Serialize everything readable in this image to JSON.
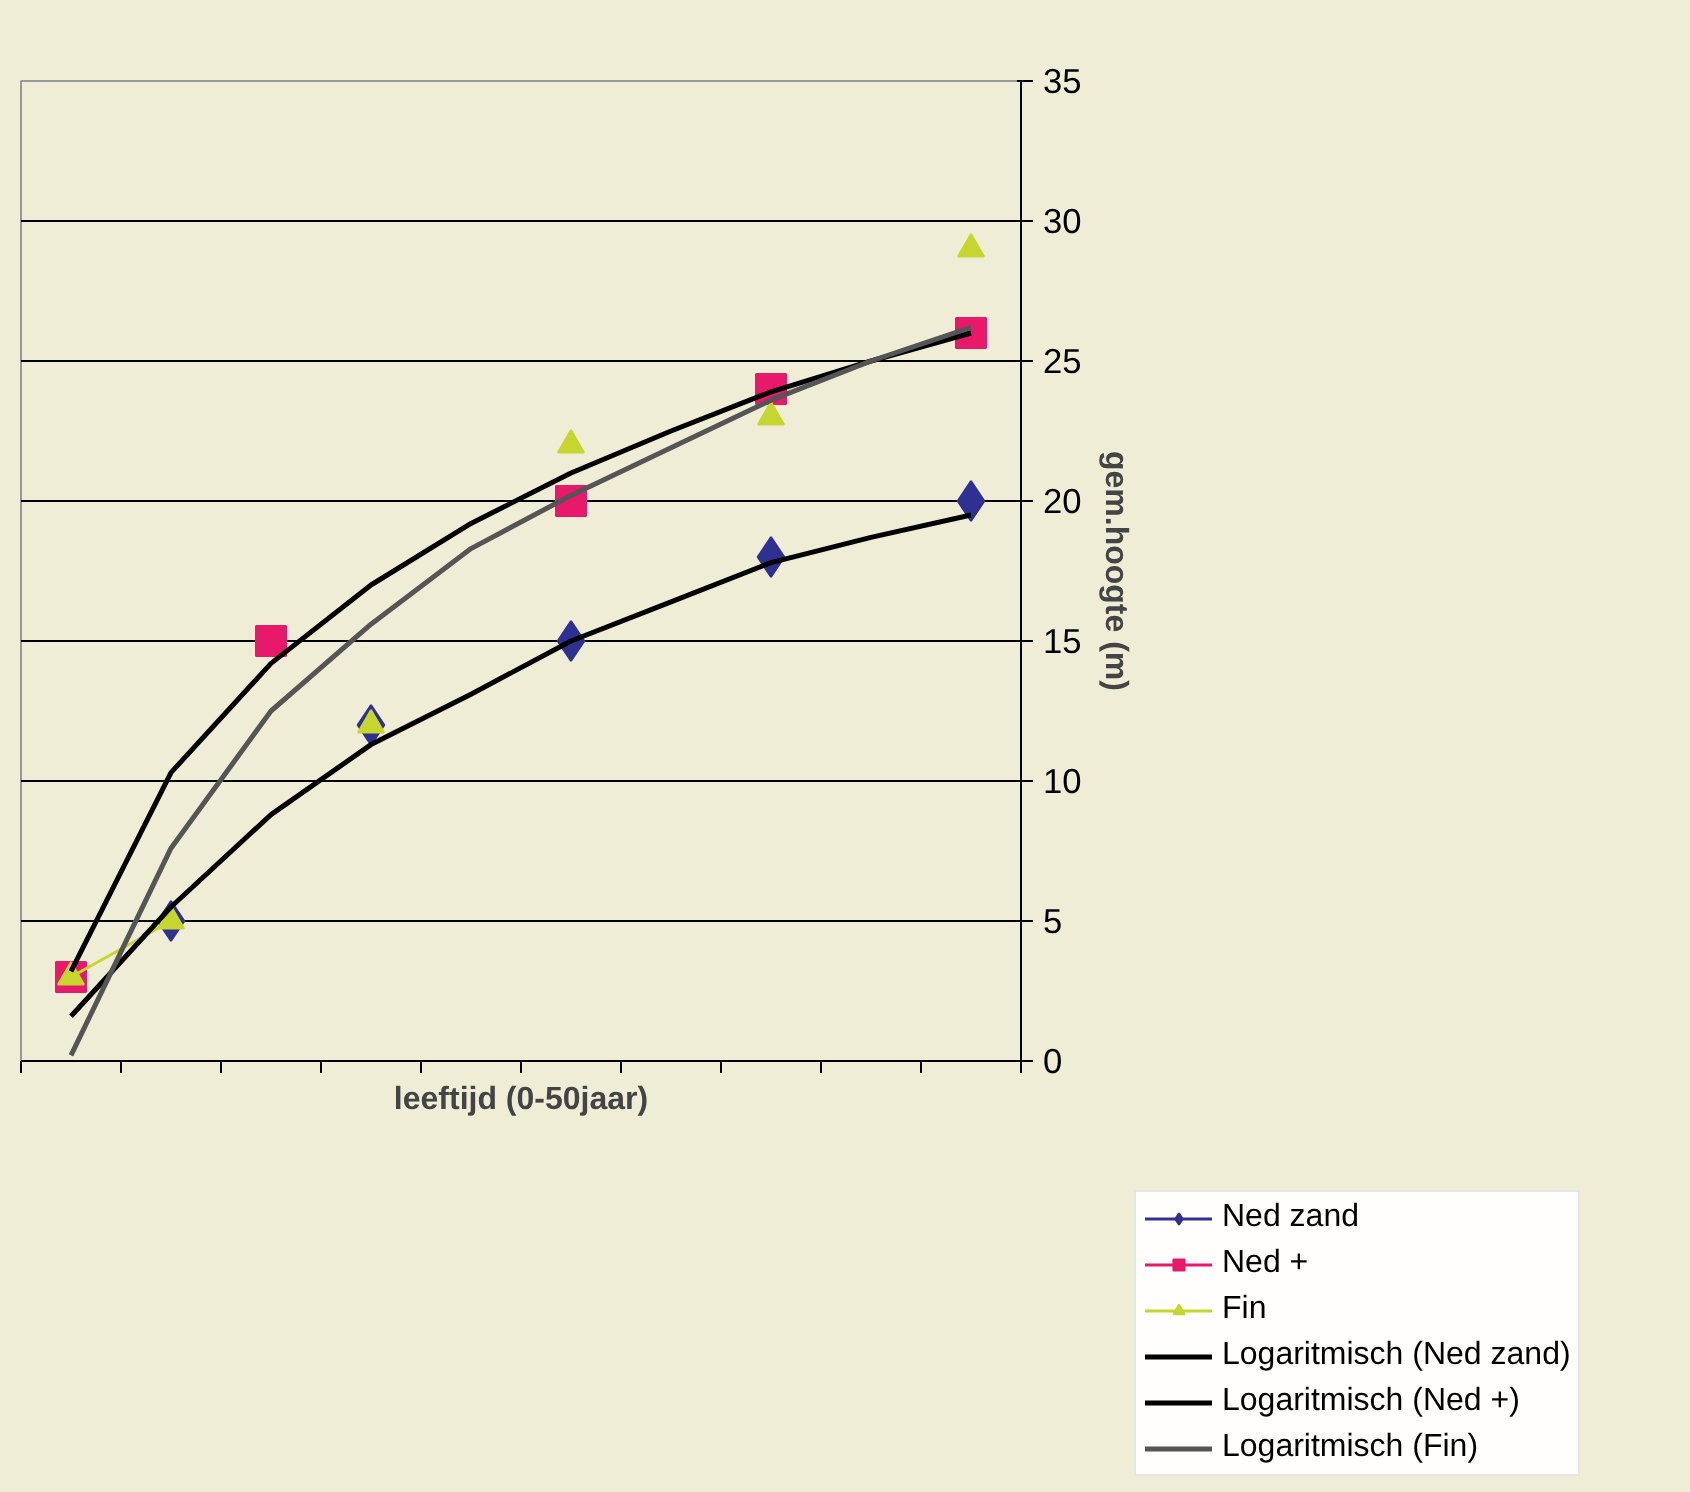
{
  "chart_data": {
    "type": "line",
    "xlabel": "leeftijd (0-50jaar)",
    "ylabel": "gem.hoogte (m)",
    "categories": [
      null,
      null,
      null,
      null,
      null,
      null,
      null,
      null,
      null,
      null
    ],
    "ylim": [
      0,
      35
    ],
    "yticks": [
      0,
      5,
      10,
      15,
      20,
      25,
      30,
      35
    ],
    "grid": "y",
    "legend": "bottom right",
    "tick_labels": "y",
    "line_style": "solid",
    "series": [
      {
        "name": "Ned zand",
        "type": "scatter",
        "color": "#2e3192",
        "marker": "diamond",
        "values": [
          null,
          5,
          null,
          12,
          null,
          15,
          null,
          18,
          null,
          20
        ]
      },
      {
        "name": "Ned +",
        "type": "scatter",
        "color": "#e8196a",
        "marker": "square",
        "values": [
          3,
          null,
          15,
          null,
          null,
          20,
          null,
          24,
          null,
          26
        ]
      },
      {
        "name": "Fin",
        "color": "#c6d62e",
        "marker": "triangle",
        "values": [
          3,
          5,
          null,
          12,
          null,
          22,
          null,
          23,
          null,
          29
        ]
      },
      {
        "name": "Logaritmisch (Ned zand)",
        "color": "#000000",
        "marker": "none",
        "values": [
          1.6,
          5.5,
          8.8,
          11.3,
          13.1,
          15.0,
          16.4,
          17.8,
          18.7,
          19.5
        ]
      },
      {
        "name": "Logaritmisch (Ned +)",
        "color": "#000000",
        "marker": "none",
        "values": [
          3.2,
          10.3,
          14.2,
          17.0,
          19.2,
          21.0,
          22.5,
          23.9,
          25.0,
          26.0
        ]
      },
      {
        "name": "Logaritmisch (Fin)",
        "color": "#555555",
        "marker": "none",
        "values": [
          0.2,
          7.6,
          12.5,
          15.6,
          18.3,
          20.2,
          21.9,
          23.6,
          25.0,
          26.2
        ]
      }
    ]
  }
}
